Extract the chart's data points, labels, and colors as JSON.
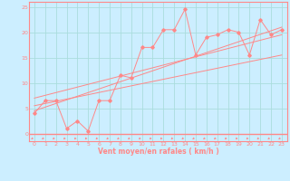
{
  "xlabel": "Vent moyen/en rafales ( km/h )",
  "bg_color": "#cceeff",
  "grid_color": "#aadddd",
  "line_color": "#ff8888",
  "xlim": [
    -0.5,
    23.5
  ],
  "ylim": [
    -1.5,
    26
  ],
  "xticks": [
    0,
    1,
    2,
    3,
    4,
    5,
    6,
    7,
    8,
    9,
    10,
    11,
    12,
    13,
    14,
    15,
    16,
    17,
    18,
    19,
    20,
    21,
    22,
    23
  ],
  "yticks": [
    0,
    5,
    10,
    15,
    20,
    25
  ],
  "series1_x": [
    0,
    1,
    2,
    3,
    4,
    5,
    6,
    7,
    8,
    9,
    10,
    11,
    12,
    13,
    14,
    15,
    16,
    17,
    18,
    19,
    20,
    21,
    22,
    23
  ],
  "series1_y": [
    4.0,
    6.5,
    6.5,
    1.0,
    2.5,
    0.5,
    6.5,
    6.5,
    11.5,
    11.0,
    17.0,
    17.0,
    20.5,
    20.5,
    24.5,
    15.5,
    19.0,
    19.5,
    20.5,
    20.0,
    15.5,
    22.5,
    19.5,
    20.5
  ],
  "trend1_x": [
    0,
    23
  ],
  "trend1_y": [
    4.5,
    21.0
  ],
  "trend2_x": [
    0,
    23
  ],
  "trend2_y": [
    5.5,
    15.5
  ],
  "trend3_x": [
    0,
    23
  ],
  "trend3_y": [
    7.0,
    19.5
  ]
}
